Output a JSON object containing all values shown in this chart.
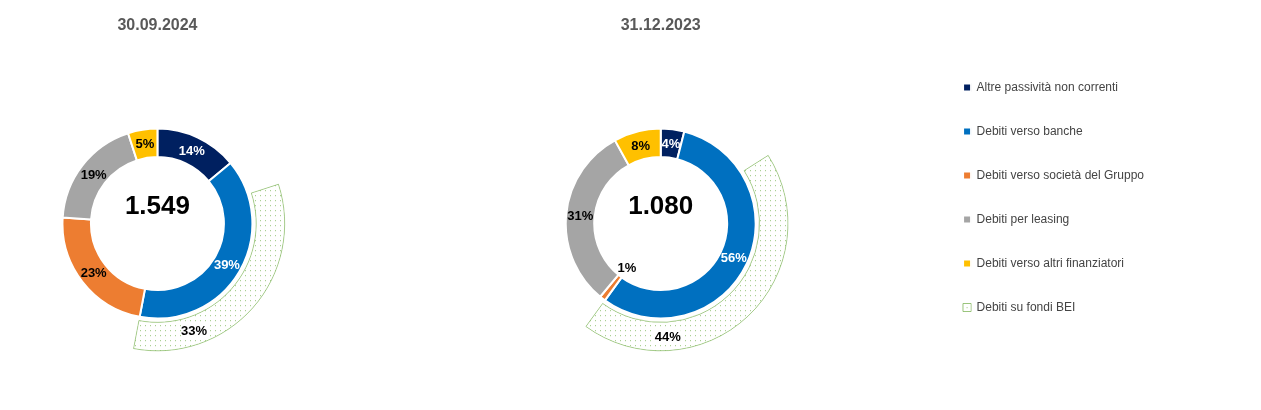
{
  "chart_data": [
    {
      "type": "donut",
      "title": "30.09.2024",
      "categories": [
        null,
        null,
        null,
        null,
        null
      ],
      "values": [
        14,
        39,
        23,
        19,
        5
      ],
      "colors": [
        "#002060",
        "#0070c0",
        "#ed7d31",
        "#a5a5a5",
        "#ffc000"
      ],
      "value_labels": [
        "14%",
        "39%",
        "23%",
        "19%",
        "5%"
      ],
      "series": [
        {
          "colors": [
            null,
            "#70ad47",
            null,
            null,
            null
          ],
          "values": [
            null,
            33,
            null,
            null,
            null
          ],
          "value_labels": [
            null,
            "33%",
            null,
            null,
            null
          ]
        }
      ],
      "annotations": [
        "1.549"
      ],
      "legend": "right"
    },
    {
      "type": "donut",
      "title": "31.12.2023",
      "categories": [
        "Altre passività non correnti",
        "Debiti verso banche",
        "Debiti verso società del Gruppo",
        "Debiti per leasing",
        "Debiti verso altri finanziatori"
      ],
      "values": [
        4,
        56,
        1,
        31,
        8
      ],
      "colors": [
        "#002060",
        "#0070c0",
        "#ed7d31",
        "#a5a5a5",
        "#ffc000"
      ],
      "value_labels": [
        "4%",
        "56%",
        "1%",
        "31%",
        "8%"
      ],
      "series": [
        {
          "name": "Debiti su fondi BEI",
          "colors": [
            null,
            "#70ad47",
            null,
            null,
            null
          ],
          "values": [
            null,
            44,
            null,
            null,
            null
          ],
          "value_labels": [
            null,
            "44%",
            null,
            null,
            null
          ]
        }
      ],
      "annotations": [
        "1.080"
      ],
      "legend": "right"
    }
  ]
}
